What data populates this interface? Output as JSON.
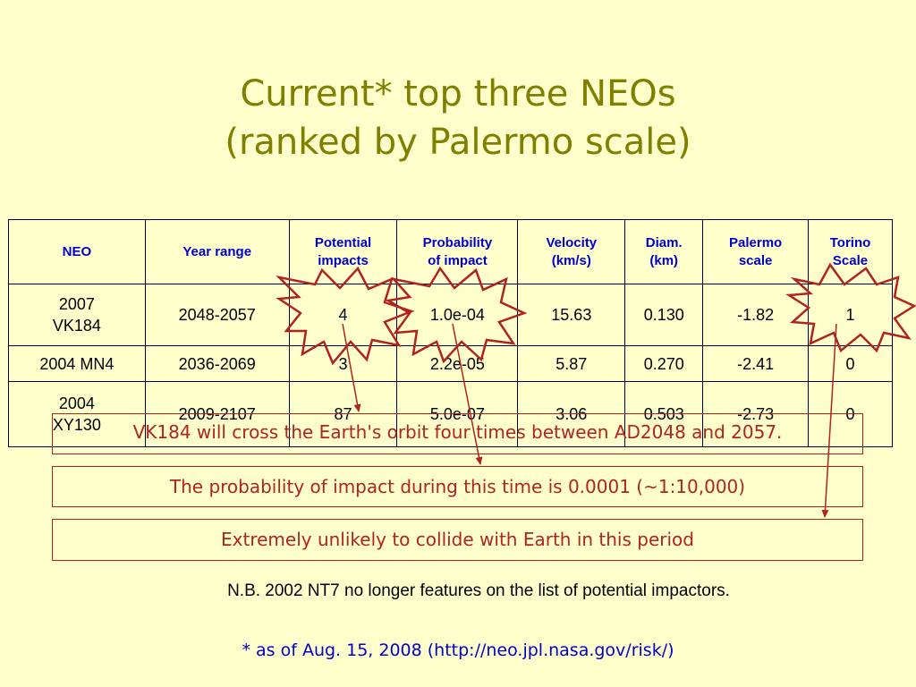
{
  "title": {
    "line1": "Current* top three  NEOs",
    "line2": "(ranked by Palermo scale)"
  },
  "table": {
    "headers": [
      [
        "NEO"
      ],
      [
        "Year range"
      ],
      [
        "Potential",
        "impacts"
      ],
      [
        "Probability",
        "of impact"
      ],
      [
        "Velocity",
        "(km/s)"
      ],
      [
        "Diam.",
        "(km)"
      ],
      [
        "Palermo",
        "scale"
      ],
      [
        "Torino",
        "Scale"
      ]
    ],
    "rows": [
      [
        [
          "2007",
          "VK184"
        ],
        [
          "2048-2057"
        ],
        [
          "4"
        ],
        [
          "1.0e-04"
        ],
        [
          "15.63"
        ],
        [
          "0.130"
        ],
        [
          "-1.82"
        ],
        [
          "1"
        ]
      ],
      [
        [
          "2004 MN4"
        ],
        [
          "2036-2069"
        ],
        [
          "3"
        ],
        [
          "2.2e-05"
        ],
        [
          "5.87"
        ],
        [
          "0.270"
        ],
        [
          "-2.41"
        ],
        [
          "0"
        ]
      ],
      [
        [
          "2004",
          "XY130"
        ],
        [
          "2009-2107"
        ],
        [
          "87"
        ],
        [
          "5.0e-07"
        ],
        [
          "3.06"
        ],
        [
          "0.503"
        ],
        [
          "-2.73"
        ],
        [
          "0"
        ]
      ]
    ]
  },
  "callouts": {
    "orbit": "VK184 will cross the Earth's orbit four times between AD2048 and 2057.",
    "probability": "The probability of impact during this time is 0.0001 (~1:10,000)",
    "unlikely": "Extremely unlikely to collide with Earth in this period"
  },
  "note": "N.B. 2002 NT7 no longer features on the list of potential impactors.",
  "footnote": "* as of Aug. 15, 2008  (http://neo.jpl.nasa.gov/risk/)",
  "colors": {
    "background": "#FFFFCC",
    "title": "#7F7F00",
    "header_text": "#0000CC",
    "callout": "#B22222",
    "burst": "#B22222",
    "arrow": "#B22222"
  },
  "icons": [
    "burst-shape",
    "arrow"
  ]
}
